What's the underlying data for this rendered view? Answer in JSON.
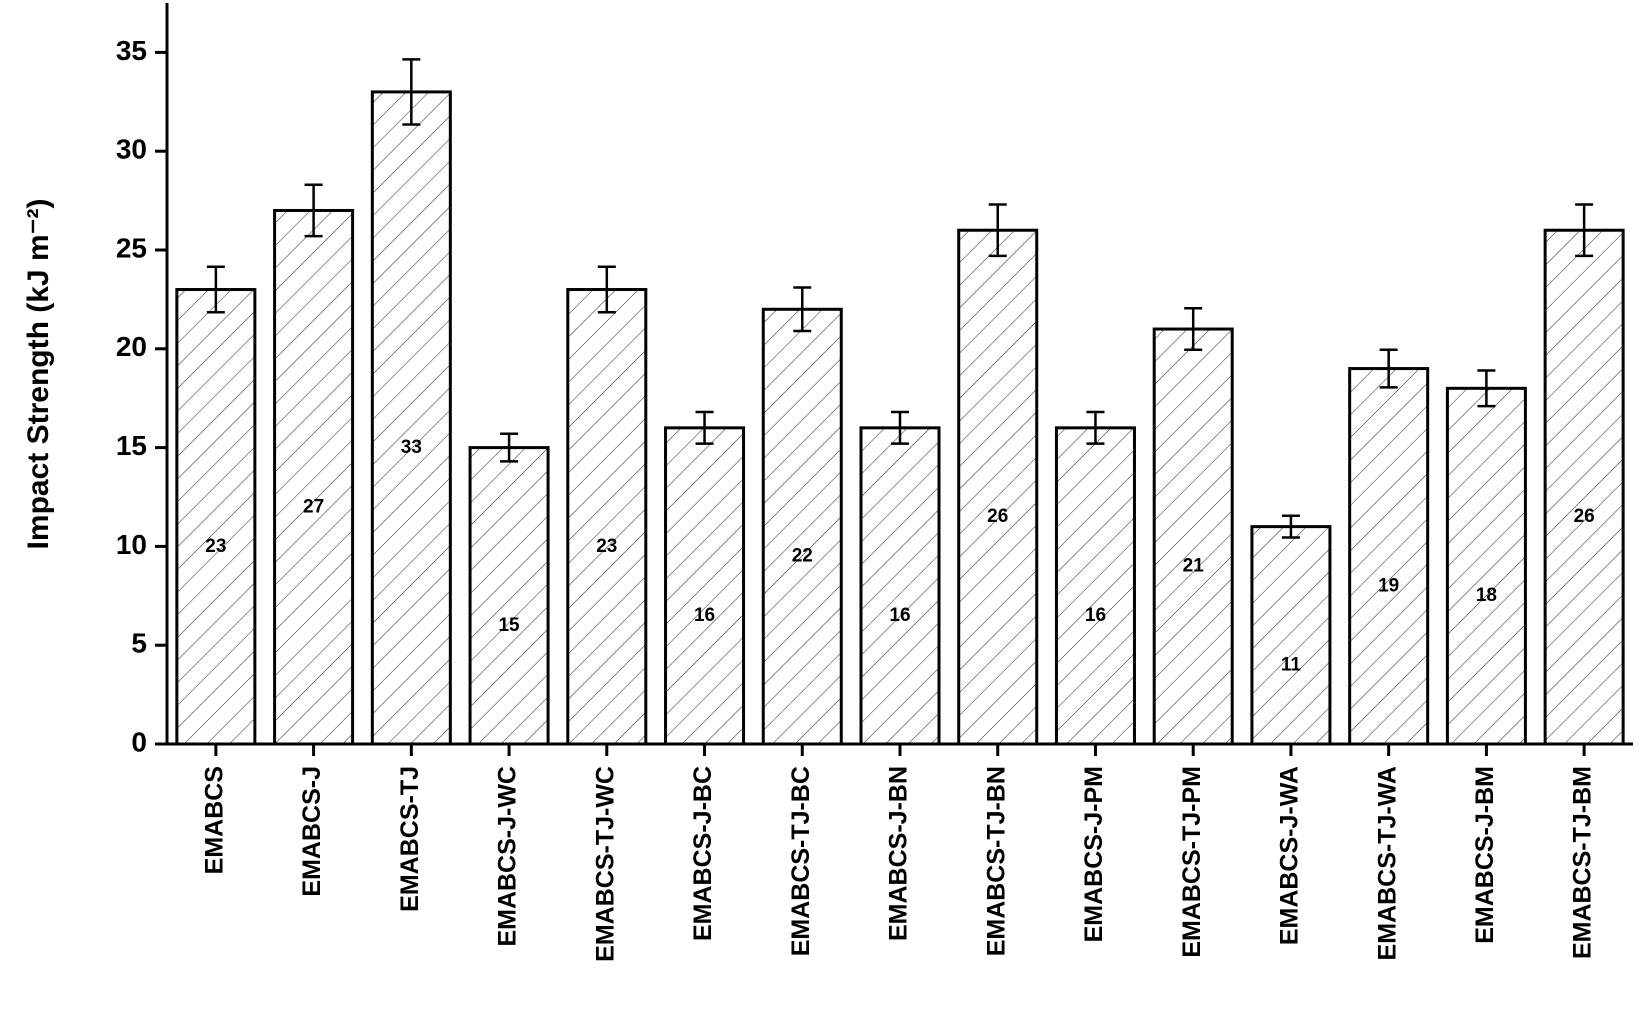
{
  "chart_data": {
    "type": "bar",
    "y_label": "Impact Strength (kJ m⁻²)",
    "categories": [
      "EMABCS",
      "EMABCS-J",
      "EMABCS-TJ",
      "EMABCS-J-WC",
      "EMABCS-TJ-WC",
      "EMABCS-J-BC",
      "EMABCS-TJ-BC",
      "EMABCS-J-BN",
      "EMABCS-TJ-BN",
      "EMABCS-J-PM",
      "EMABCS-TJ-PM",
      "EMABCS-J-WA",
      "EMABCS-TJ-WA",
      "EMABCS-J-BM",
      "EMABCS-TJ-BM"
    ],
    "values": [
      23,
      27,
      33,
      15,
      23,
      16,
      22,
      16,
      26,
      16,
      21,
      11,
      19,
      18,
      26
    ],
    "errors": [
      1.15,
      1.3,
      1.65,
      0.7,
      1.15,
      0.8,
      1.1,
      0.8,
      1.3,
      0.8,
      1.05,
      0.55,
      0.95,
      0.9,
      1.3
    ],
    "color": "#000000",
    "ylim": [
      0,
      37.5
    ],
    "yticks": [
      0,
      5,
      10,
      15,
      20,
      25,
      30,
      35
    ],
    "grid": false
  }
}
